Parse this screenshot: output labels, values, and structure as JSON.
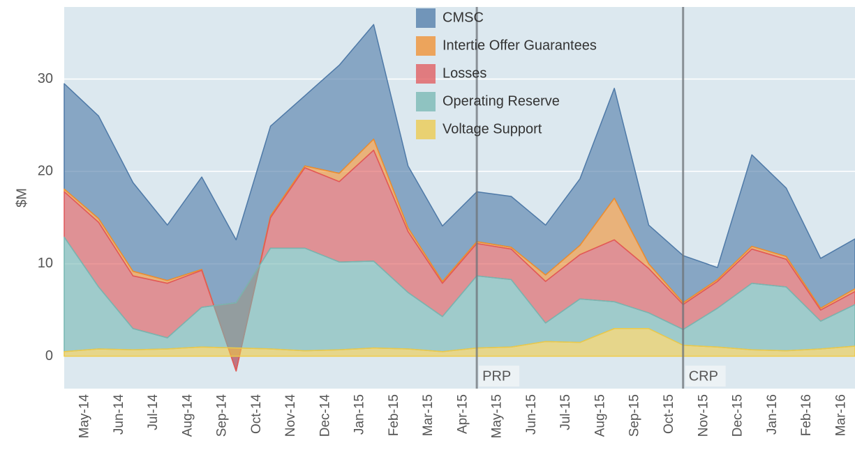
{
  "chart_data": {
    "type": "stacked-area",
    "y_label": "$M",
    "categories": [
      "May-14",
      "Jun-14",
      "Jul-14",
      "Aug-14",
      "Sep-14",
      "Oct-14",
      "Nov-14",
      "Dec-14",
      "Jan-15",
      "Feb-15",
      "Mar-15",
      "Apr-15",
      "May-15",
      "Jun-15",
      "Jul-15",
      "Aug-15",
      "Sep-15",
      "Oct-15",
      "Nov-15",
      "Dec-15",
      "Jan-16",
      "Feb-16",
      "Mar-16",
      null
    ],
    "series": [
      {
        "name": "CMSC",
        "color": "#4e79a7",
        "values": [
          11.4,
          11.1,
          9.6,
          6.0,
          10.0,
          14.2,
          9.7,
          7.6,
          11.7,
          12.4,
          6.7,
          6.0,
          5.4,
          5.5,
          5.4,
          7.2,
          11.9,
          4.2,
          5.1,
          1.3,
          9.9,
          7.4,
          5.4,
          5.4
        ]
      },
      {
        "name": "Intertie Offer Guarantees",
        "color": "#f28e2b",
        "values": [
          0.3,
          0.4,
          0.5,
          0.3,
          0.1,
          0,
          0.2,
          0.2,
          0.9,
          1.2,
          0.4,
          0.2,
          0.2,
          0.2,
          0.7,
          1.0,
          4.5,
          0.5,
          0.2,
          0.2,
          0.3,
          0.3,
          0.2,
          0.3
        ]
      },
      {
        "name": "Losses",
        "color": "#e15759",
        "values": [
          4.9,
          7.0,
          5.7,
          5.9,
          4.0,
          -7.4,
          3.3,
          8.7,
          8.7,
          12.0,
          6.6,
          3.6,
          3.5,
          3.3,
          4.5,
          4.8,
          6.7,
          4.8,
          2.7,
          2.9,
          3.7,
          3.0,
          1.2,
          1.4
        ]
      },
      {
        "name": "Operating Reserve",
        "color": "#76b7b2",
        "values": [
          12.4,
          6.7,
          2.3,
          1.2,
          4.3,
          4.9,
          10.9,
          11.1,
          9.5,
          9.4,
          6.1,
          3.8,
          7.8,
          7.3,
          2.0,
          4.7,
          2.9,
          1.7,
          1.7,
          4.2,
          7.2,
          6.9,
          3.0,
          4.5
        ]
      },
      {
        "name": "Voltage Support",
        "color": "#edc948",
        "values": [
          0.5,
          0.8,
          0.7,
          0.8,
          1.0,
          0.9,
          0.8,
          0.6,
          0.7,
          0.9,
          0.8,
          0.5,
          0.9,
          1.0,
          1.6,
          1.5,
          3.0,
          3.0,
          1.2,
          1.0,
          0.7,
          0.6,
          0.8,
          1.1
        ]
      }
    ],
    "annotations": [
      {
        "text": "PRP",
        "x": "May-15"
      },
      {
        "text": "CRP",
        "x": "Nov-15"
      }
    ],
    "ylim": [
      -3.5,
      37.8
    ],
    "yticks": [
      0,
      10,
      20,
      30
    ],
    "grid": true,
    "legend": "top"
  }
}
